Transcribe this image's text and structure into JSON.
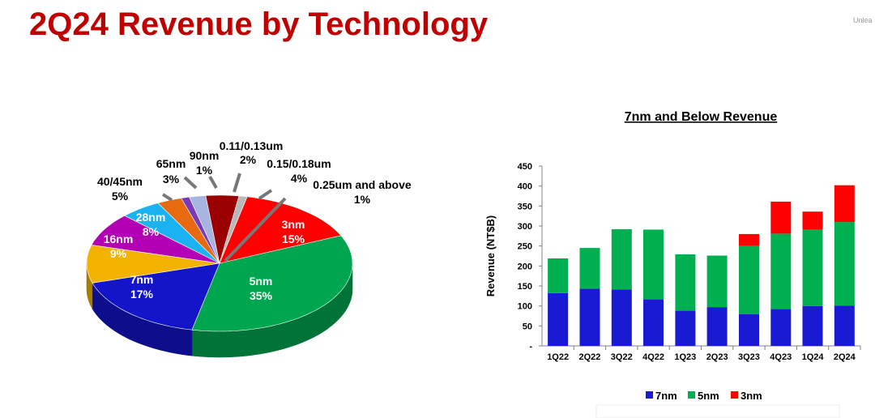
{
  "page": {
    "title": "2Q24 Revenue by Technology",
    "corner_text": "Unlea"
  },
  "chart_data": [
    {
      "type": "pie",
      "title": "",
      "slices": [
        {
          "label": "3nm",
          "value": 15,
          "value_label": "15%",
          "color": "#ff0000",
          "label_color": "#ffffff"
        },
        {
          "label": "5nm",
          "value": 35,
          "value_label": "35%",
          "color": "#00a64f",
          "label_color": "#ffffff"
        },
        {
          "label": "7nm",
          "value": 17,
          "value_label": "17%",
          "color": "#1414c8",
          "label_color": "#ffffff"
        },
        {
          "label": "16nm",
          "value": 9,
          "value_label": "9%",
          "color": "#f2b300",
          "label_color": "#ffffff"
        },
        {
          "label": "28nm",
          "value": 8,
          "value_label": "8%",
          "color": "#b400b4",
          "label_color": "#ffffff"
        },
        {
          "label": "40/45nm",
          "value": 5,
          "value_label": "5%",
          "color": "#1ab2f0",
          "label_color": "#000000"
        },
        {
          "label": "65nm",
          "value": 3,
          "value_label": "3%",
          "color": "#e86a10",
          "label_color": "#000000"
        },
        {
          "label": "90nm",
          "value": 1,
          "value_label": "1%",
          "color": "#7a3ab8",
          "label_color": "#000000"
        },
        {
          "label": "0.11/0.13um",
          "value": 2,
          "value_label": "2%",
          "color": "#a8b4e0",
          "label_color": "#000000"
        },
        {
          "label": "0.15/0.18um",
          "value": 4,
          "value_label": "4%",
          "color": "#9a0000",
          "label_color": "#000000"
        },
        {
          "label": "0.25um and above",
          "value": 1,
          "value_label": "1%",
          "color": "#b8b8b8",
          "label_color": "#000000"
        }
      ]
    },
    {
      "type": "bar",
      "stacked": true,
      "title": "7nm and Below Revenue",
      "xlabel": "",
      "ylabel": "Revenue (NT$B)",
      "ylim": [
        0,
        450
      ],
      "yticks": [
        0,
        50,
        100,
        150,
        200,
        250,
        300,
        350,
        400,
        450
      ],
      "ytick_labels": [
        "-",
        "50",
        "100",
        "150",
        "200",
        "250",
        "300",
        "350",
        "400",
        "450"
      ],
      "categories": [
        "1Q22",
        "2Q22",
        "3Q22",
        "4Q22",
        "1Q23",
        "2Q23",
        "3Q23",
        "4Q23",
        "1Q24",
        "2Q24"
      ],
      "series": [
        {
          "name": "7nm",
          "color": "#1a1ad2",
          "values": [
            132,
            143,
            141,
            117,
            88,
            97,
            79,
            92,
            100,
            101
          ]
        },
        {
          "name": "5nm",
          "color": "#00b050",
          "values": [
            87,
            102,
            151,
            174,
            141,
            129,
            171,
            189,
            191,
            209
          ]
        },
        {
          "name": "3nm",
          "color": "#ff0000",
          "values": [
            0,
            0,
            0,
            0,
            0,
            0,
            30,
            80,
            45,
            92
          ]
        }
      ],
      "legend_position": "bottom",
      "grid": false
    }
  ]
}
